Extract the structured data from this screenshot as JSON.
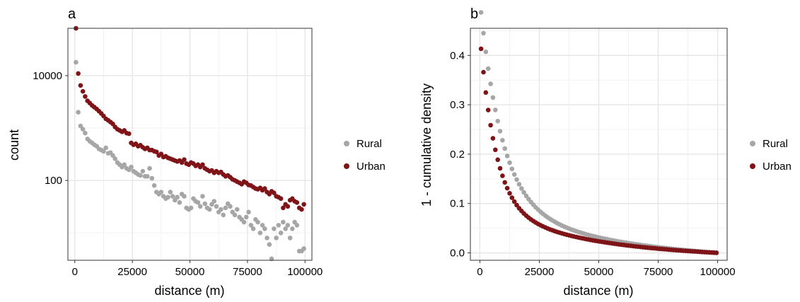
{
  "colors": {
    "rural": "#a6a6a6",
    "urban": "#7f1418",
    "grid_major": "#e6e6e6",
    "grid_minor": "#f2f2f2"
  },
  "chart_data": [
    {
      "panel": "a",
      "type": "scatter",
      "xlabel": "distance (m)",
      "ylabel": "count",
      "xlim": [
        -3000,
        103000
      ],
      "ylim": [
        3,
        80000
      ],
      "yscale": "log10",
      "xticks": [
        0,
        25000,
        50000,
        75000,
        100000
      ],
      "xtick_labels": [
        "0",
        "25000",
        "50000",
        "75000",
        "100000"
      ],
      "yticks": [
        100,
        10000
      ],
      "ytick_labels": [
        "100",
        "10000"
      ],
      "grid": true,
      "legend": "right",
      "series": [
        {
          "name": "Rural",
          "color": "#a6a6a6",
          "x": [
            500,
            1500,
            2500,
            3500,
            4500,
            5500,
            6500,
            7500,
            8500,
            9500,
            10500,
            11500,
            12500,
            13500,
            14500,
            15500,
            16500,
            17500,
            18500,
            19500,
            20500,
            21500,
            22500,
            23500,
            24500,
            25500,
            26500,
            27500,
            28500,
            29500,
            30500,
            31500,
            32500,
            33500,
            34500,
            35500,
            36500,
            37500,
            38500,
            39500,
            40500,
            41500,
            42500,
            43500,
            44500,
            45500,
            46500,
            47500,
            48500,
            49500,
            50500,
            51500,
            52500,
            53500,
            54500,
            55500,
            56500,
            57500,
            58500,
            59500,
            60500,
            61500,
            62500,
            63500,
            64500,
            65500,
            66500,
            67500,
            68500,
            69500,
            70500,
            71500,
            72500,
            73500,
            74500,
            75500,
            76500,
            77500,
            78500,
            79500,
            80500,
            81500,
            82500,
            83500,
            84500,
            85500,
            86500,
            87500,
            88500,
            89500,
            90500,
            91500,
            92500,
            93500,
            94500,
            95500,
            96500,
            97500,
            98500,
            99500
          ],
          "y": [
            18000,
            2000,
            1100,
            950,
            800,
            620,
            560,
            520,
            480,
            450,
            400,
            380,
            360,
            420,
            330,
            340,
            300,
            260,
            220,
            200,
            180,
            200,
            170,
            160,
            180,
            150,
            140,
            130,
            125,
            150,
            120,
            120,
            170,
            110,
            80,
            60,
            55,
            60,
            50,
            45,
            48,
            60,
            50,
            42,
            48,
            38,
            55,
            50,
            30,
            28,
            30,
            45,
            40,
            38,
            32,
            50,
            36,
            30,
            28,
            35,
            40,
            32,
            25,
            28,
            22,
            30,
            36,
            32,
            25,
            22,
            28,
            20,
            18,
            16,
            20,
            25,
            14,
            12,
            18,
            16,
            10,
            14,
            12,
            8,
            6,
            3.2,
            12,
            8,
            14,
            10,
            16,
            12,
            14,
            8,
            12,
            16,
            14,
            4.5,
            4.5,
            5
          ]
        },
        {
          "name": "Urban",
          "color": "#7f1418",
          "x": [
            500,
            1500,
            2500,
            3500,
            4500,
            5500,
            6500,
            7500,
            8500,
            9500,
            10500,
            11500,
            12500,
            13500,
            14500,
            15500,
            16500,
            17500,
            18500,
            19500,
            20500,
            21500,
            22500,
            23500,
            24500,
            25500,
            26500,
            27500,
            28500,
            29500,
            30500,
            31500,
            32500,
            33500,
            34500,
            35500,
            36500,
            37500,
            38500,
            39500,
            40500,
            41500,
            42500,
            43500,
            44500,
            45500,
            46500,
            47500,
            48500,
            49500,
            50500,
            51500,
            52500,
            53500,
            54500,
            55500,
            56500,
            57500,
            58500,
            59500,
            60500,
            61500,
            62500,
            63500,
            64500,
            65500,
            66500,
            67500,
            68500,
            69500,
            70500,
            71500,
            72500,
            73500,
            74500,
            75500,
            76500,
            77500,
            78500,
            79500,
            80500,
            81500,
            82500,
            83500,
            84500,
            85500,
            86500,
            87500,
            88500,
            89500,
            90500,
            91500,
            92500,
            93500,
            94500,
            95500,
            96500,
            97500,
            98500,
            99500
          ],
          "y": [
            80000,
            11000,
            6500,
            5000,
            4000,
            3300,
            3000,
            2700,
            2500,
            2300,
            2100,
            1900,
            1700,
            1500,
            1400,
            1300,
            1200,
            1050,
            950,
            900,
            850,
            900,
            800,
            780,
            520,
            480,
            500,
            450,
            470,
            430,
            400,
            420,
            380,
            380,
            360,
            350,
            300,
            320,
            280,
            290,
            270,
            260,
            250,
            240,
            230,
            240,
            220,
            250,
            210,
            200,
            220,
            210,
            190,
            200,
            180,
            200,
            170,
            160,
            150,
            155,
            140,
            150,
            140,
            145,
            130,
            120,
            125,
            115,
            105,
            100,
            95,
            90,
            85,
            95,
            90,
            82,
            80,
            75,
            70,
            68,
            72,
            65,
            70,
            60,
            55,
            62,
            58,
            50,
            48,
            45,
            30,
            35,
            32,
            42,
            45,
            40,
            38,
            30,
            28,
            35
          ]
        }
      ]
    },
    {
      "panel": "b",
      "type": "scatter",
      "xlabel": "distance (m)",
      "ylabel": "1 - cumulative density",
      "xlim": [
        -4000,
        104000
      ],
      "ylim": [
        -0.015,
        0.455
      ],
      "yscale": "linear",
      "xticks": [
        0,
        25000,
        50000,
        75000,
        100000
      ],
      "xtick_labels": [
        "0",
        "25000",
        "50000",
        "75000",
        "100000"
      ],
      "yticks": [
        0.0,
        0.1,
        0.2,
        0.3,
        0.4
      ],
      "ytick_labels": [
        "0.0",
        "0.1",
        "0.2",
        "0.3",
        "0.4"
      ],
      "grid": true,
      "legend": "right",
      "series": [
        {
          "name": "Rural",
          "color": "#a6a6a6",
          "curve": {
            "a": 0.395,
            "k": 9000,
            "b": 0.115,
            "m": 42000,
            "start": 500,
            "step": 1000,
            "end": 99500
          }
        },
        {
          "name": "Urban",
          "color": "#7f1418",
          "curve": {
            "a": 0.34,
            "k": 6500,
            "b": 0.1,
            "m": 38000,
            "start": 500,
            "step": 1000,
            "end": 99500
          }
        }
      ]
    }
  ]
}
